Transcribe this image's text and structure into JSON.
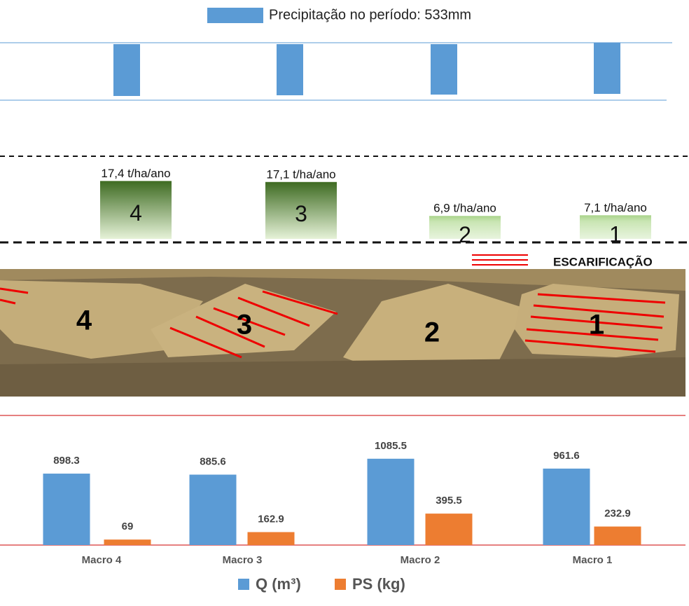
{
  "precipitation_legend": {
    "label": "Precipitação no período: 533mm",
    "color": "#5b9bd5"
  },
  "photo": {
    "labels": [
      "4",
      "3",
      "2",
      "1"
    ],
    "legend": "ESCARIFICAÇÃO"
  },
  "chart_data": [
    {
      "type": "bar",
      "categories": [
        "4",
        "3",
        "2",
        "1"
      ],
      "values": [
        17.4,
        17.1,
        6.9,
        7.1
      ],
      "value_labels": [
        "17,4 t/ha/ano",
        "17,1 t/ha/ano",
        "6,9 t/ha/ano",
        "7,1 t/ha/ano"
      ]
    },
    {
      "type": "grouped-bar",
      "categories": [
        "Macro 4",
        "Macro 3",
        "Macro 2",
        "Macro 1"
      ],
      "series": [
        {
          "name": "Q (m³)",
          "color": "#5b9bd5",
          "values": [
            898.3,
            885.6,
            1085.5,
            961.6
          ]
        },
        {
          "name": "PS (kg)",
          "color": "#ed7d31",
          "values": [
            69,
            162.9,
            395.5,
            232.9
          ]
        }
      ]
    }
  ]
}
